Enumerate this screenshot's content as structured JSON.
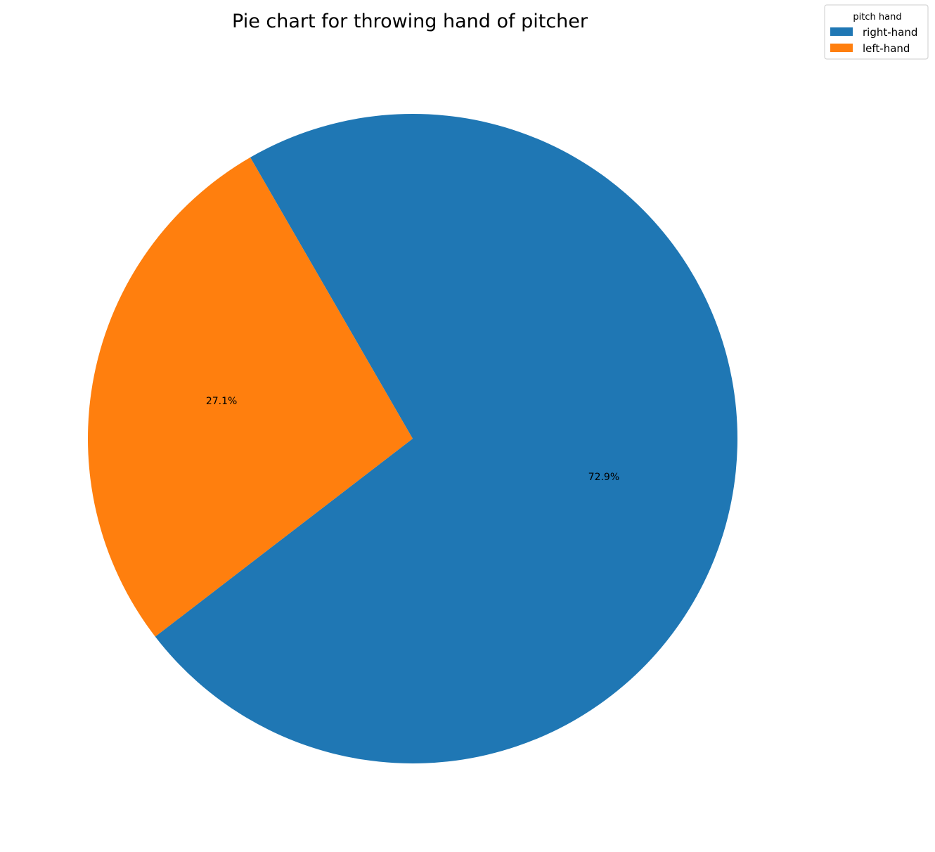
{
  "chart_data": {
    "type": "pie",
    "title": "Pie chart for throwing hand of pitcher",
    "slices": [
      {
        "name": "right-hand",
        "value": 72.9,
        "label": "72.9%",
        "color": "#1f77b4"
      },
      {
        "name": "left-hand",
        "value": 27.1,
        "label": "27.1%",
        "color": "#ff7f0e"
      }
    ],
    "legend": {
      "title": "pitch hand",
      "placement": "top-right"
    },
    "counterclock": false
  }
}
